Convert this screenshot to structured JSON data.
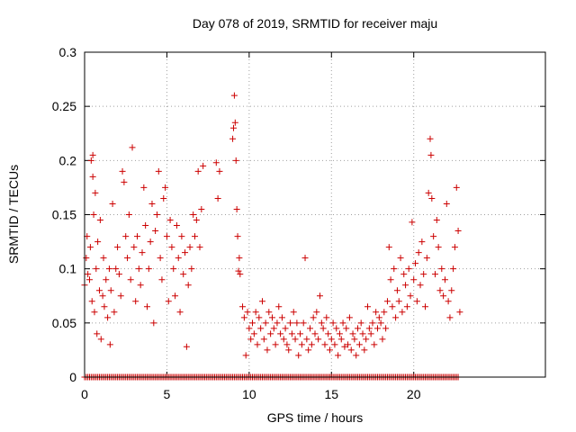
{
  "chart_data": {
    "type": "scatter",
    "title": "Day 078 of 2019, SRMTID for receiver maju",
    "xlabel": "GPS time / hours",
    "ylabel": "SRMTID / TECUs",
    "xlim": [
      0,
      28
    ],
    "ylim": [
      0,
      0.3
    ],
    "x_ticks": [
      0,
      5,
      10,
      15,
      20
    ],
    "x_tick_labels": [
      "0",
      "5",
      "10",
      "15",
      "20"
    ],
    "y_ticks": [
      0,
      0.05,
      0.1,
      0.15,
      0.2,
      0.25,
      0.3
    ],
    "y_tick_labels": [
      "0",
      "0.05",
      "0.1",
      "0.15",
      "0.2",
      "0.25",
      "0.3"
    ],
    "grid": true,
    "marker": "+",
    "color": "#cc0000",
    "series": [
      {
        "name": "SRMTID",
        "points": [
          [
            0.0,
            0.085
          ],
          [
            0.1,
            0.11
          ],
          [
            0.15,
            0.13
          ],
          [
            0.2,
            0.095
          ],
          [
            0.3,
            0.09
          ],
          [
            0.35,
            0.12
          ],
          [
            0.4,
            0.2
          ],
          [
            0.45,
            0.07
          ],
          [
            0.5,
            0.185
          ],
          [
            0.5,
            0.205
          ],
          [
            0.55,
            0.15
          ],
          [
            0.6,
            0.06
          ],
          [
            0.65,
            0.17
          ],
          [
            0.7,
            0.1
          ],
          [
            0.75,
            0.04
          ],
          [
            0.8,
            0.125
          ],
          [
            0.9,
            0.08
          ],
          [
            0.95,
            0.145
          ],
          [
            1.0,
            0.035
          ],
          [
            1.1,
            0.075
          ],
          [
            1.15,
            0.11
          ],
          [
            1.2,
            0.065
          ],
          [
            1.3,
            0.09
          ],
          [
            1.4,
            0.055
          ],
          [
            1.5,
            0.1
          ],
          [
            1.55,
            0.03
          ],
          [
            1.6,
            0.08
          ],
          [
            1.7,
            0.16
          ],
          [
            1.8,
            0.06
          ],
          [
            1.9,
            0.1
          ],
          [
            2.0,
            0.12
          ],
          [
            2.1,
            0.095
          ],
          [
            2.2,
            0.075
          ],
          [
            2.3,
            0.19
          ],
          [
            2.4,
            0.18
          ],
          [
            2.5,
            0.13
          ],
          [
            2.6,
            0.11
          ],
          [
            2.7,
            0.15
          ],
          [
            2.8,
            0.09
          ],
          [
            2.9,
            0.212
          ],
          [
            3.0,
            0.12
          ],
          [
            3.1,
            0.07
          ],
          [
            3.2,
            0.13
          ],
          [
            3.3,
            0.1
          ],
          [
            3.4,
            0.085
          ],
          [
            3.5,
            0.115
          ],
          [
            3.6,
            0.175
          ],
          [
            3.7,
            0.14
          ],
          [
            3.8,
            0.065
          ],
          [
            3.9,
            0.1
          ],
          [
            4.0,
            0.125
          ],
          [
            4.1,
            0.16
          ],
          [
            4.2,
            0.05
          ],
          [
            4.3,
            0.135
          ],
          [
            4.4,
            0.15
          ],
          [
            4.5,
            0.19
          ],
          [
            4.6,
            0.11
          ],
          [
            4.7,
            0.09
          ],
          [
            4.8,
            0.165
          ],
          [
            4.9,
            0.175
          ],
          [
            5.0,
            0.13
          ],
          [
            5.1,
            0.07
          ],
          [
            5.2,
            0.145
          ],
          [
            5.3,
            0.12
          ],
          [
            5.4,
            0.1
          ],
          [
            5.5,
            0.075
          ],
          [
            5.6,
            0.14
          ],
          [
            5.7,
            0.11
          ],
          [
            5.8,
            0.06
          ],
          [
            5.9,
            0.13
          ],
          [
            6.0,
            0.095
          ],
          [
            6.1,
            0.115
          ],
          [
            6.2,
            0.028
          ],
          [
            6.3,
            0.085
          ],
          [
            6.4,
            0.12
          ],
          [
            6.5,
            0.1
          ],
          [
            6.6,
            0.15
          ],
          [
            6.7,
            0.13
          ],
          [
            6.8,
            0.145
          ],
          [
            6.9,
            0.19
          ],
          [
            7.0,
            0.12
          ],
          [
            7.1,
            0.155
          ],
          [
            7.2,
            0.195
          ],
          [
            8.0,
            0.198
          ],
          [
            8.1,
            0.165
          ],
          [
            8.2,
            0.19
          ],
          [
            9.0,
            0.22
          ],
          [
            9.05,
            0.23
          ],
          [
            9.1,
            0.26
          ],
          [
            9.15,
            0.235
          ],
          [
            9.2,
            0.2
          ],
          [
            9.25,
            0.155
          ],
          [
            9.3,
            0.13
          ],
          [
            9.35,
            0.098
          ],
          [
            9.4,
            0.11
          ],
          [
            9.45,
            0.095
          ],
          [
            9.6,
            0.065
          ],
          [
            9.7,
            0.055
          ],
          [
            9.8,
            0.02
          ],
          [
            9.9,
            0.06
          ],
          [
            10.0,
            0.045
          ],
          [
            10.1,
            0.035
          ],
          [
            10.2,
            0.05
          ],
          [
            10.3,
            0.04
          ],
          [
            10.4,
            0.06
          ],
          [
            10.5,
            0.03
          ],
          [
            10.6,
            0.055
          ],
          [
            10.7,
            0.045
          ],
          [
            10.8,
            0.07
          ],
          [
            10.9,
            0.035
          ],
          [
            11.0,
            0.05
          ],
          [
            11.1,
            0.025
          ],
          [
            11.2,
            0.06
          ],
          [
            11.3,
            0.04
          ],
          [
            11.4,
            0.055
          ],
          [
            11.5,
            0.045
          ],
          [
            11.6,
            0.03
          ],
          [
            11.7,
            0.05
          ],
          [
            11.8,
            0.065
          ],
          [
            11.9,
            0.04
          ],
          [
            12.0,
            0.055
          ],
          [
            12.1,
            0.035
          ],
          [
            12.2,
            0.045
          ],
          [
            12.3,
            0.03
          ],
          [
            12.4,
            0.025
          ],
          [
            12.5,
            0.05
          ],
          [
            12.6,
            0.04
          ],
          [
            12.7,
            0.06
          ],
          [
            12.8,
            0.035
          ],
          [
            12.9,
            0.05
          ],
          [
            13.0,
            0.02
          ],
          [
            13.1,
            0.04
          ],
          [
            13.2,
            0.03
          ],
          [
            13.3,
            0.05
          ],
          [
            13.4,
            0.11
          ],
          [
            13.5,
            0.035
          ],
          [
            13.6,
            0.025
          ],
          [
            13.7,
            0.045
          ],
          [
            13.8,
            0.03
          ],
          [
            13.9,
            0.055
          ],
          [
            14.0,
            0.04
          ],
          [
            14.1,
            0.06
          ],
          [
            14.2,
            0.035
          ],
          [
            14.3,
            0.075
          ],
          [
            14.4,
            0.05
          ],
          [
            14.5,
            0.045
          ],
          [
            14.6,
            0.03
          ],
          [
            14.7,
            0.055
          ],
          [
            14.8,
            0.04
          ],
          [
            14.9,
            0.025
          ],
          [
            15.0,
            0.035
          ],
          [
            15.1,
            0.05
          ],
          [
            15.2,
            0.03
          ],
          [
            15.3,
            0.045
          ],
          [
            15.4,
            0.02
          ],
          [
            15.5,
            0.04
          ],
          [
            15.6,
            0.035
          ],
          [
            15.7,
            0.05
          ],
          [
            15.8,
            0.028
          ],
          [
            15.9,
            0.045
          ],
          [
            16.0,
            0.03
          ],
          [
            16.1,
            0.055
          ],
          [
            16.2,
            0.025
          ],
          [
            16.3,
            0.04
          ],
          [
            16.4,
            0.035
          ],
          [
            16.5,
            0.02
          ],
          [
            16.6,
            0.045
          ],
          [
            16.7,
            0.03
          ],
          [
            16.8,
            0.05
          ],
          [
            16.9,
            0.04
          ],
          [
            17.0,
            0.025
          ],
          [
            17.1,
            0.035
          ],
          [
            17.2,
            0.065
          ],
          [
            17.3,
            0.045
          ],
          [
            17.4,
            0.04
          ],
          [
            17.5,
            0.05
          ],
          [
            17.6,
            0.03
          ],
          [
            17.7,
            0.06
          ],
          [
            17.8,
            0.045
          ],
          [
            17.9,
            0.055
          ],
          [
            18.0,
            0.05
          ],
          [
            18.1,
            0.035
          ],
          [
            18.2,
            0.06
          ],
          [
            18.3,
            0.045
          ],
          [
            18.4,
            0.07
          ],
          [
            18.5,
            0.12
          ],
          [
            18.6,
            0.09
          ],
          [
            18.7,
            0.065
          ],
          [
            18.8,
            0.1
          ],
          [
            18.9,
            0.055
          ],
          [
            19.0,
            0.08
          ],
          [
            19.1,
            0.07
          ],
          [
            19.2,
            0.11
          ],
          [
            19.3,
            0.06
          ],
          [
            19.4,
            0.095
          ],
          [
            19.5,
            0.085
          ],
          [
            19.6,
            0.065
          ],
          [
            19.7,
            0.1
          ],
          [
            19.8,
            0.075
          ],
          [
            19.9,
            0.143
          ],
          [
            20.0,
            0.09
          ],
          [
            20.1,
            0.105
          ],
          [
            20.2,
            0.07
          ],
          [
            20.3,
            0.115
          ],
          [
            20.4,
            0.085
          ],
          [
            20.5,
            0.125
          ],
          [
            20.6,
            0.095
          ],
          [
            20.7,
            0.065
          ],
          [
            20.8,
            0.11
          ],
          [
            20.9,
            0.17
          ],
          [
            21.0,
            0.22
          ],
          [
            21.05,
            0.205
          ],
          [
            21.1,
            0.165
          ],
          [
            21.2,
            0.13
          ],
          [
            21.3,
            0.095
          ],
          [
            21.4,
            0.145
          ],
          [
            21.5,
            0.12
          ],
          [
            21.6,
            0.08
          ],
          [
            21.7,
            0.1
          ],
          [
            21.8,
            0.075
          ],
          [
            21.9,
            0.09
          ],
          [
            22.0,
            0.16
          ],
          [
            22.1,
            0.07
          ],
          [
            22.2,
            0.055
          ],
          [
            22.3,
            0.08
          ],
          [
            22.4,
            0.1
          ],
          [
            22.5,
            0.12
          ],
          [
            22.6,
            0.175
          ],
          [
            22.7,
            0.135
          ],
          [
            22.8,
            0.06
          ]
        ],
        "zero_line_range": [
          0,
          22.7
        ]
      }
    ]
  }
}
